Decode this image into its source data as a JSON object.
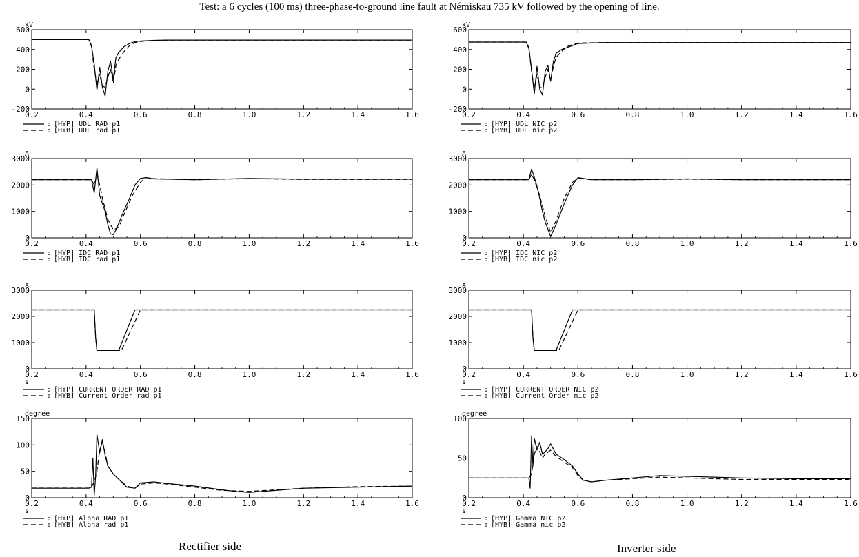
{
  "title": "Test: a 6 cycles (100 ms) three-phase-to-ground line fault at Némiskau 735 kV followed by the opening of line.",
  "captions": {
    "left": "Rectifier side",
    "right": "Inverter side"
  },
  "legend_symbols": {
    "solid": ":",
    "dashed": ":"
  },
  "chart_data": [
    {
      "type": "line",
      "column": "left",
      "row": 0,
      "unit": "kV",
      "xlabel": "",
      "ylim": [
        -200,
        600
      ],
      "yticks": [
        -200,
        0,
        200,
        400,
        600
      ],
      "xlim": [
        0.2,
        1.6
      ],
      "xticks": [
        "0.2",
        "0.4",
        "0.6",
        "0.8",
        "1.0",
        "1.2",
        "1.4",
        "1.6"
      ],
      "series": [
        {
          "name": "[HYP] UDL RAD p1",
          "style": "solid",
          "x": [
            0.2,
            0.41,
            0.42,
            0.43,
            0.44,
            0.45,
            0.46,
            0.47,
            0.48,
            0.49,
            0.5,
            0.51,
            0.52,
            0.54,
            0.56,
            0.58,
            0.6,
            0.62,
            0.65,
            0.7,
            1.6
          ],
          "y": [
            500,
            500,
            440,
            250,
            -10,
            220,
            20,
            -70,
            180,
            280,
            100,
            320,
            370,
            430,
            460,
            480,
            485,
            488,
            492,
            495,
            495
          ]
        },
        {
          "name": "[HYB] UDL rad p1",
          "style": "dashed",
          "x": [
            0.2,
            0.41,
            0.42,
            0.43,
            0.44,
            0.45,
            0.46,
            0.47,
            0.48,
            0.49,
            0.5,
            0.51,
            0.52,
            0.54,
            0.56,
            0.58,
            0.6,
            0.62,
            0.65,
            0.7,
            1.6
          ],
          "y": [
            500,
            500,
            430,
            200,
            60,
            150,
            30,
            20,
            120,
            200,
            60,
            240,
            300,
            380,
            440,
            470,
            480,
            486,
            490,
            495,
            495
          ]
        }
      ]
    },
    {
      "type": "line",
      "column": "left",
      "row": 1,
      "unit": "A",
      "xlabel": "",
      "ylim": [
        0,
        3000
      ],
      "yticks": [
        0,
        1000,
        2000,
        3000
      ],
      "xlim": [
        0.2,
        1.6
      ],
      "xticks": [
        "0.2",
        "0.4",
        "0.6",
        "0.8",
        "1.0",
        "1.2",
        "1.4",
        "1.6"
      ],
      "series": [
        {
          "name": "[HYP] IDC RAD p1",
          "style": "solid",
          "x": [
            0.2,
            0.42,
            0.43,
            0.44,
            0.45,
            0.46,
            0.47,
            0.48,
            0.49,
            0.5,
            0.51,
            0.53,
            0.56,
            0.58,
            0.6,
            0.62,
            0.65,
            0.8,
            1.0,
            1.2,
            1.6
          ],
          "y": [
            2200,
            2200,
            1700,
            2650,
            1600,
            1300,
            1000,
            500,
            150,
            120,
            300,
            800,
            1500,
            2000,
            2250,
            2280,
            2230,
            2200,
            2250,
            2220,
            2220
          ]
        },
        {
          "name": "[HYB] IDC rad p1",
          "style": "dashed",
          "x": [
            0.2,
            0.42,
            0.43,
            0.44,
            0.45,
            0.46,
            0.47,
            0.48,
            0.5,
            0.52,
            0.54,
            0.57,
            0.6,
            0.62,
            0.65,
            0.8,
            1.0,
            1.2,
            1.6
          ],
          "y": [
            2200,
            2200,
            2000,
            2400,
            2000,
            1500,
            1100,
            700,
            300,
            400,
            900,
            1600,
            2100,
            2280,
            2240,
            2200,
            2240,
            2210,
            2210
          ]
        }
      ]
    },
    {
      "type": "line",
      "column": "left",
      "row": 2,
      "unit": "A",
      "xlabel": "s",
      "ylim": [
        0,
        3000
      ],
      "yticks": [
        0,
        1000,
        2000,
        3000
      ],
      "xlim": [
        0.2,
        1.6
      ],
      "xticks": [
        "0.2",
        "0.4",
        "0.6",
        "0.8",
        "1.0",
        "1.2",
        "1.4",
        "1.6"
      ],
      "series": [
        {
          "name": "[HYP] CURRENT ORDER RAD p1",
          "style": "solid",
          "x": [
            0.2,
            0.43,
            0.435,
            0.44,
            0.52,
            0.58,
            1.6
          ],
          "y": [
            2250,
            2250,
            1200,
            700,
            700,
            2250,
            2250
          ]
        },
        {
          "name": "[HYB] Current Order rad p1",
          "style": "dashed",
          "x": [
            0.2,
            0.43,
            0.435,
            0.44,
            0.53,
            0.6,
            1.6
          ],
          "y": [
            2250,
            2250,
            1200,
            700,
            700,
            2250,
            2250
          ]
        }
      ]
    },
    {
      "type": "line",
      "column": "left",
      "row": 3,
      "unit": "degree",
      "xlabel": "s",
      "ylim": [
        0,
        150
      ],
      "yticks": [
        0,
        50,
        100,
        150
      ],
      "xlim": [
        0.2,
        1.6
      ],
      "xticks": [
        "0.2",
        "0.4",
        "0.6",
        "0.8",
        "1.0",
        "1.2",
        "1.4",
        "1.6"
      ],
      "series": [
        {
          "name": "[HYP] Alpha RAD p1",
          "style": "solid",
          "x": [
            0.2,
            0.41,
            0.42,
            0.425,
            0.43,
            0.435,
            0.44,
            0.45,
            0.46,
            0.47,
            0.48,
            0.5,
            0.52,
            0.55,
            0.58,
            0.6,
            0.65,
            0.7,
            0.8,
            0.9,
            0.95,
            1.0,
            1.1,
            1.2,
            1.4,
            1.6
          ],
          "y": [
            18,
            18,
            20,
            75,
            5,
            40,
            120,
            85,
            110,
            80,
            60,
            45,
            35,
            20,
            18,
            28,
            30,
            27,
            22,
            15,
            12,
            10,
            14,
            18,
            20,
            22
          ]
        },
        {
          "name": "[HYB] Alpha rad p1",
          "style": "dashed",
          "x": [
            0.2,
            0.42,
            0.43,
            0.44,
            0.45,
            0.46,
            0.47,
            0.48,
            0.5,
            0.52,
            0.55,
            0.58,
            0.6,
            0.65,
            0.7,
            0.8,
            0.9,
            1.0,
            1.1,
            1.2,
            1.4,
            1.6
          ],
          "y": [
            20,
            20,
            30,
            50,
            90,
            105,
            85,
            60,
            45,
            35,
            22,
            18,
            26,
            28,
            26,
            20,
            14,
            12,
            15,
            18,
            21,
            22
          ]
        }
      ]
    },
    {
      "type": "line",
      "column": "right",
      "row": 0,
      "unit": "kV",
      "xlabel": "",
      "ylim": [
        -200,
        600
      ],
      "yticks": [
        -200,
        0,
        200,
        400,
        600
      ],
      "xlim": [
        0.2,
        1.6
      ],
      "xticks": [
        "0.2",
        "0.4",
        "0.6",
        "0.8",
        "1.0",
        "1.2",
        "1.4",
        "1.6"
      ],
      "series": [
        {
          "name": "[HYP] UDL NIC p2",
          "style": "solid",
          "x": [
            0.2,
            0.41,
            0.42,
            0.43,
            0.44,
            0.45,
            0.46,
            0.47,
            0.48,
            0.49,
            0.5,
            0.51,
            0.52,
            0.54,
            0.56,
            0.58,
            0.6,
            0.65,
            0.7,
            1.6
          ],
          "y": [
            475,
            475,
            420,
            200,
            -50,
            230,
            0,
            -60,
            180,
            240,
            80,
            280,
            360,
            400,
            420,
            440,
            460,
            465,
            470,
            470
          ]
        },
        {
          "name": "[HYB] UDL nic p2",
          "style": "dashed",
          "x": [
            0.2,
            0.41,
            0.42,
            0.43,
            0.44,
            0.45,
            0.46,
            0.47,
            0.48,
            0.49,
            0.5,
            0.51,
            0.52,
            0.54,
            0.56,
            0.58,
            0.6,
            0.65,
            0.7,
            1.6
          ],
          "y": [
            475,
            475,
            410,
            180,
            10,
            150,
            20,
            10,
            120,
            200,
            90,
            230,
            320,
            380,
            430,
            450,
            465,
            468,
            470,
            470
          ]
        }
      ]
    },
    {
      "type": "line",
      "column": "right",
      "row": 1,
      "unit": "A",
      "xlabel": "",
      "ylim": [
        0,
        3000
      ],
      "yticks": [
        0,
        1000,
        2000,
        3000
      ],
      "xlim": [
        0.2,
        1.6
      ],
      "xticks": [
        "0.2",
        "0.4",
        "0.6",
        "0.8",
        "1.0",
        "1.2",
        "1.4",
        "1.6"
      ],
      "series": [
        {
          "name": "[HYP] IDC NIC p2",
          "style": "solid",
          "x": [
            0.2,
            0.42,
            0.43,
            0.44,
            0.45,
            0.46,
            0.47,
            0.48,
            0.5,
            0.52,
            0.55,
            0.58,
            0.6,
            0.62,
            0.65,
            0.8,
            1.0,
            1.2,
            1.6
          ],
          "y": [
            2200,
            2200,
            2600,
            2300,
            1950,
            1500,
            1000,
            600,
            50,
            500,
            1300,
            2000,
            2280,
            2250,
            2200,
            2200,
            2230,
            2200,
            2200
          ]
        },
        {
          "name": "[HYB] IDC nic p2",
          "style": "dashed",
          "x": [
            0.2,
            0.42,
            0.43,
            0.44,
            0.45,
            0.46,
            0.47,
            0.48,
            0.5,
            0.52,
            0.55,
            0.58,
            0.6,
            0.62,
            0.65,
            0.8,
            1.0,
            1.2,
            1.6
          ],
          "y": [
            2200,
            2200,
            2400,
            2200,
            1900,
            1600,
            1200,
            800,
            200,
            650,
            1500,
            2100,
            2250,
            2230,
            2200,
            2200,
            2220,
            2200,
            2200
          ]
        }
      ]
    },
    {
      "type": "line",
      "column": "right",
      "row": 2,
      "unit": "A",
      "xlabel": "s",
      "ylim": [
        0,
        3000
      ],
      "yticks": [
        0,
        1000,
        2000,
        3000
      ],
      "xlim": [
        0.2,
        1.6
      ],
      "xticks": [
        "0.2",
        "0.4",
        "0.6",
        "0.8",
        "1.0",
        "1.2",
        "1.4",
        "1.6"
      ],
      "series": [
        {
          "name": "[HYP] CURRENT ORDER NIC p2",
          "style": "solid",
          "x": [
            0.2,
            0.43,
            0.435,
            0.44,
            0.52,
            0.58,
            1.6
          ],
          "y": [
            2250,
            2250,
            1200,
            700,
            700,
            2250,
            2250
          ]
        },
        {
          "name": "[HYB] Current Order nic p2",
          "style": "dashed",
          "x": [
            0.2,
            0.43,
            0.435,
            0.44,
            0.53,
            0.6,
            1.6
          ],
          "y": [
            2250,
            2250,
            1200,
            700,
            700,
            2250,
            2250
          ]
        }
      ]
    },
    {
      "type": "line",
      "column": "right",
      "row": 3,
      "unit": "degree",
      "xlabel": "s",
      "ylim": [
        0,
        100
      ],
      "yticks": [
        0,
        50,
        100
      ],
      "xlim": [
        0.2,
        1.6
      ],
      "xticks": [
        "0.2",
        "0.4",
        "0.6",
        "0.8",
        "1.0",
        "1.2",
        "1.4",
        "1.6"
      ],
      "series": [
        {
          "name": "[HYP] Gamma NIC p2",
          "style": "solid",
          "x": [
            0.2,
            0.42,
            0.425,
            0.43,
            0.435,
            0.44,
            0.45,
            0.46,
            0.47,
            0.48,
            0.49,
            0.5,
            0.52,
            0.55,
            0.58,
            0.6,
            0.62,
            0.65,
            0.7,
            0.8,
            0.9,
            1.0,
            1.1,
            1.2,
            1.4,
            1.6
          ],
          "y": [
            25,
            25,
            12,
            78,
            40,
            75,
            60,
            70,
            55,
            58,
            62,
            68,
            55,
            48,
            40,
            30,
            22,
            20,
            22,
            25,
            28,
            27,
            26,
            25,
            24,
            24
          ]
        },
        {
          "name": "[HYB] Gamma nic p2",
          "style": "dashed",
          "x": [
            0.2,
            0.42,
            0.43,
            0.44,
            0.45,
            0.46,
            0.47,
            0.48,
            0.5,
            0.52,
            0.55,
            0.58,
            0.6,
            0.62,
            0.65,
            0.7,
            0.8,
            0.9,
            1.0,
            1.1,
            1.2,
            1.4,
            1.6
          ],
          "y": [
            25,
            25,
            30,
            55,
            65,
            58,
            50,
            55,
            60,
            52,
            45,
            38,
            28,
            22,
            20,
            22,
            24,
            26,
            25,
            24,
            23,
            23,
            23
          ]
        }
      ]
    }
  ]
}
